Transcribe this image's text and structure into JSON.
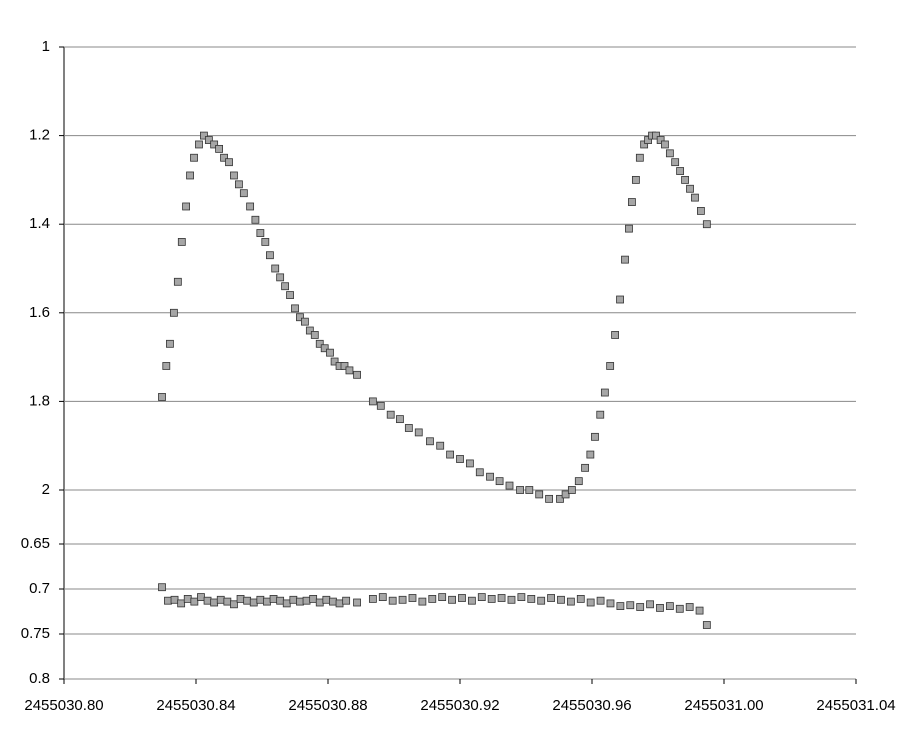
{
  "chart_data": [
    {
      "type": "scatter",
      "x": [
        2455030.8297,
        2455030.831,
        2455030.8321,
        2455030.8333,
        2455030.8345,
        2455030.8357,
        2455030.837,
        2455030.8382,
        2455030.8394,
        2455030.8409,
        2455030.8424,
        2455030.8439,
        2455030.8455,
        2455030.847,
        2455030.8485,
        2455030.85,
        2455030.8515,
        2455030.853,
        2455030.8545,
        2455030.8564,
        2455030.858,
        2455030.8595,
        2455030.861,
        2455030.8624,
        2455030.864,
        2455030.8655,
        2455030.867,
        2455030.8685,
        2455030.87,
        2455030.8715,
        2455030.873,
        2455030.8745,
        2455030.876,
        2455030.8775,
        2455030.879,
        2455030.8806,
        2455030.882,
        2455030.8835,
        2455030.885,
        2455030.8865,
        2455030.8888,
        2455030.8936,
        2455030.896,
        2455030.899,
        2455030.9018,
        2455030.9045,
        2455030.9075,
        2455030.9109,
        2455030.914,
        2455030.917,
        2455030.92,
        2455030.923,
        2455030.926,
        2455030.9291,
        2455030.932,
        2455030.935,
        2455030.9382,
        2455030.941,
        2455030.944,
        2455030.947,
        2455030.9503,
        2455030.952,
        2455030.9539,
        2455030.956,
        2455030.9579,
        2455030.9595,
        2455030.9609,
        2455030.9625,
        2455030.9639,
        2455030.9655,
        2455030.967,
        2455030.9685,
        2455030.97,
        2455030.9712,
        2455030.9721,
        2455030.9733,
        2455030.9745,
        2455030.9758,
        2455030.977,
        2455030.9782,
        2455030.9794,
        2455030.9808,
        2455030.9821,
        2455030.9836,
        2455030.9852,
        2455030.9867,
        2455030.9882,
        2455030.9897,
        2455030.9912,
        2455030.993,
        2455030.9948
      ],
      "series": [
        {
          "color": "#a6a6a6",
          "values": [
            1.79,
            1.72,
            1.67,
            1.6,
            1.53,
            1.44,
            1.36,
            1.29,
            1.25,
            1.22,
            1.2,
            1.21,
            1.22,
            1.23,
            1.25,
            1.26,
            1.29,
            1.31,
            1.33,
            1.36,
            1.39,
            1.42,
            1.44,
            1.47,
            1.5,
            1.52,
            1.54,
            1.56,
            1.59,
            1.61,
            1.62,
            1.64,
            1.65,
            1.67,
            1.68,
            1.69,
            1.71,
            1.72,
            1.72,
            1.73,
            1.74,
            1.8,
            1.81,
            1.83,
            1.84,
            1.86,
            1.87,
            1.89,
            1.9,
            1.92,
            1.93,
            1.94,
            1.96,
            1.97,
            1.98,
            1.99,
            2.0,
            2.0,
            2.01,
            2.02,
            2.02,
            2.01,
            2.0,
            1.98,
            1.95,
            1.92,
            1.88,
            1.83,
            1.78,
            1.72,
            1.65,
            1.57,
            1.48,
            1.41,
            1.35,
            1.3,
            1.25,
            1.22,
            1.21,
            1.2,
            1.2,
            1.21,
            1.22,
            1.24,
            1.26,
            1.28,
            1.3,
            1.32,
            1.34,
            1.37,
            1.4
          ]
        }
      ],
      "xlim": [
        2455030.8,
        2455031.04
      ],
      "ylim": [
        1,
        2
      ],
      "y_inverted": true,
      "yticks": [
        1,
        1.2,
        1.4,
        1.6,
        1.8,
        2
      ],
      "grid": true
    },
    {
      "type": "scatter",
      "x": [
        2455030.8297,
        2455030.8315,
        2455030.8335,
        2455030.8355,
        2455030.8375,
        2455030.8395,
        2455030.8415,
        2455030.8435,
        2455030.8455,
        2455030.8475,
        2455030.8495,
        2455030.8515,
        2455030.8535,
        2455030.8555,
        2455030.8575,
        2455030.8595,
        2455030.8615,
        2455030.8635,
        2455030.8655,
        2455030.8675,
        2455030.8695,
        2455030.8715,
        2455030.8735,
        2455030.8755,
        2455030.8775,
        2455030.8795,
        2455030.8815,
        2455030.8835,
        2455030.8855,
        2455030.8888,
        2455030.8936,
        2455030.8966,
        2455030.8996,
        2455030.9026,
        2455030.9056,
        2455030.9086,
        2455030.9116,
        2455030.9146,
        2455030.9176,
        2455030.9206,
        2455030.9236,
        2455030.9266,
        2455030.9296,
        2455030.9326,
        2455030.9356,
        2455030.9386,
        2455030.9416,
        2455030.9446,
        2455030.9476,
        2455030.9506,
        2455030.9536,
        2455030.9566,
        2455030.9596,
        2455030.9626,
        2455030.9656,
        2455030.9686,
        2455030.9716,
        2455030.9746,
        2455030.9776,
        2455030.9806,
        2455030.9836,
        2455030.9866,
        2455030.9896,
        2455030.9926,
        2455030.9948
      ],
      "series": [
        {
          "color": "#a6a6a6",
          "values": [
            0.698,
            0.713,
            0.712,
            0.716,
            0.711,
            0.714,
            0.709,
            0.713,
            0.715,
            0.712,
            0.714,
            0.717,
            0.711,
            0.713,
            0.715,
            0.712,
            0.714,
            0.711,
            0.713,
            0.716,
            0.712,
            0.714,
            0.713,
            0.711,
            0.715,
            0.712,
            0.714,
            0.716,
            0.713,
            0.715,
            0.711,
            0.709,
            0.713,
            0.712,
            0.71,
            0.714,
            0.711,
            0.709,
            0.712,
            0.71,
            0.713,
            0.709,
            0.711,
            0.71,
            0.712,
            0.709,
            0.711,
            0.713,
            0.71,
            0.712,
            0.714,
            0.711,
            0.715,
            0.713,
            0.716,
            0.719,
            0.718,
            0.72,
            0.717,
            0.721,
            0.719,
            0.722,
            0.72,
            0.724,
            0.74
          ]
        }
      ],
      "xlim": [
        2455030.8,
        2455031.04
      ],
      "xticks": [
        {
          "value": 2455030.8,
          "label": "2455030.80"
        },
        2455030.84,
        2455030.88,
        2455030.92,
        2455030.96,
        {
          "value": 2455031.0,
          "label": "2455031.00"
        },
        2455031.04
      ],
      "ylim": [
        0.65,
        0.8
      ],
      "y_inverted": true,
      "yticks": [
        0.65,
        0.7,
        0.75,
        0.8
      ],
      "grid": true
    }
  ]
}
